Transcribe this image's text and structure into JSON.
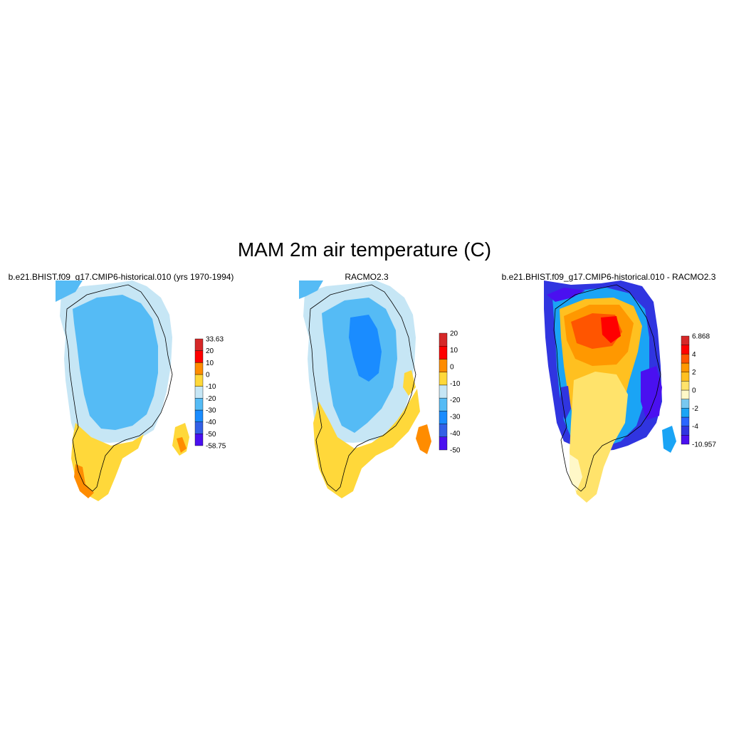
{
  "figure": {
    "title": "MAM 2m air temperature (C)"
  },
  "panels": [
    {
      "id": "model",
      "title": "b.e21.BHIST.f09_g17.CMIP6-historical.010 (yrs 1970-1994)",
      "colorbar": {
        "colors": [
          "#4a10f0",
          "#3360e6",
          "#1a8cff",
          "#55bbf5",
          "#c6e6f5",
          "#ffd83a",
          "#ff8c00",
          "#ff0000",
          "#d62828"
        ],
        "labels": [
          "-58.75",
          "-50",
          "-40",
          "-30",
          "-20",
          "-10",
          "0",
          "10",
          "20",
          "33.63"
        ]
      }
    },
    {
      "id": "racmo",
      "title": "RACMO2.3",
      "colorbar": {
        "colors": [
          "#4a10f0",
          "#3360e6",
          "#1a8cff",
          "#55bbf5",
          "#c6e6f5",
          "#ffd83a",
          "#ff8c00",
          "#ff0000",
          "#d62828"
        ],
        "labels": [
          "-50",
          "-40",
          "-30",
          "-20",
          "-10",
          "0",
          "10",
          "20"
        ]
      }
    },
    {
      "id": "diff",
      "title": "b.e21.BHIST.f09_g17.CMIP6-historical.010 - RACMO2.3",
      "colorbar": {
        "colors": [
          "#4a10f0",
          "#3035e0",
          "#2a66ff",
          "#1aa4f5",
          "#78c8f0",
          "#fff8c8",
          "#ffe36b",
          "#ffc020",
          "#ff9800",
          "#ff5500",
          "#ff0000",
          "#d62828"
        ],
        "labels": [
          "-10.957",
          "-4",
          "-2",
          "0",
          "2",
          "4",
          "6.868"
        ]
      }
    }
  ]
}
